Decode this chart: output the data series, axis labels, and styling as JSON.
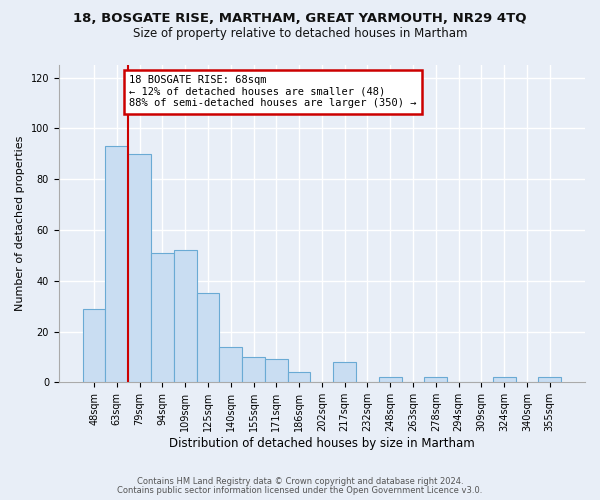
{
  "title1": "18, BOSGATE RISE, MARTHAM, GREAT YARMOUTH, NR29 4TQ",
  "title2": "Size of property relative to detached houses in Martham",
  "xlabel": "Distribution of detached houses by size in Martham",
  "ylabel": "Number of detached properties",
  "bin_labels": [
    "48sqm",
    "63sqm",
    "79sqm",
    "94sqm",
    "109sqm",
    "125sqm",
    "140sqm",
    "155sqm",
    "171sqm",
    "186sqm",
    "202sqm",
    "217sqm",
    "232sqm",
    "248sqm",
    "263sqm",
    "278sqm",
    "294sqm",
    "309sqm",
    "324sqm",
    "340sqm",
    "355sqm"
  ],
  "bin_values": [
    29,
    93,
    90,
    51,
    52,
    35,
    14,
    10,
    9,
    4,
    0,
    8,
    0,
    2,
    0,
    2,
    0,
    0,
    2,
    0,
    2
  ],
  "bar_color": "#c9ddf2",
  "bar_edge_color": "#6aaad4",
  "vline_color": "#cc0000",
  "vline_x": 1.5,
  "annotation_text": "18 BOSGATE RISE: 68sqm\n← 12% of detached houses are smaller (48)\n88% of semi-detached houses are larger (350) →",
  "annotation_box_facecolor": "#ffffff",
  "annotation_box_edgecolor": "#cc0000",
  "ylim": [
    0,
    125
  ],
  "yticks": [
    0,
    20,
    40,
    60,
    80,
    100,
    120
  ],
  "footer1": "Contains HM Land Registry data © Crown copyright and database right 2024.",
  "footer2": "Contains public sector information licensed under the Open Government Licence v3.0.",
  "figure_facecolor": "#e8eef7",
  "plot_facecolor": "#e8eef7",
  "grid_color": "#ffffff",
  "title1_fontsize": 9.5,
  "title2_fontsize": 8.5,
  "ylabel_fontsize": 8,
  "xlabel_fontsize": 8.5,
  "tick_fontsize": 7,
  "annot_fontsize": 7.5,
  "footer_fontsize": 6
}
